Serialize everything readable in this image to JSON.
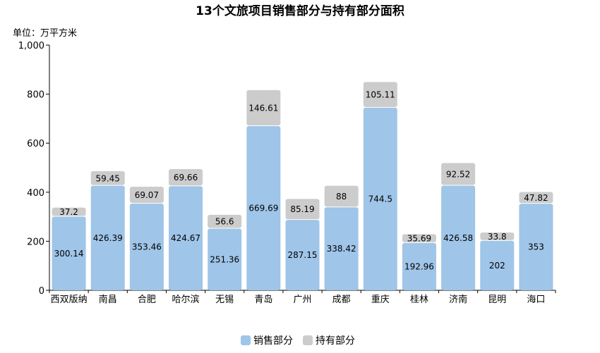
{
  "chart_data": {
    "type": "bar",
    "stacked": true,
    "title": "13个文旅项目销售部分与持有部分面积",
    "unit_label": "单位：万平方米",
    "categories": [
      "西双版纳",
      "南昌",
      "合肥",
      "哈尔滨",
      "无锡",
      "青岛",
      "广州",
      "成都",
      "重庆",
      "桂林",
      "济南",
      "昆明",
      "海口"
    ],
    "series": [
      {
        "name": "销售部分",
        "color": "#9fc5e8",
        "values": [
          300.14,
          426.39,
          353.46,
          424.67,
          251.36,
          669.69,
          287.15,
          338.42,
          744.5,
          192.96,
          426.58,
          202,
          353
        ]
      },
      {
        "name": "持有部分",
        "color": "#cccccc",
        "values": [
          37.2,
          59.45,
          69.07,
          69.66,
          56.6,
          146.61,
          85.19,
          88,
          105.11,
          35.69,
          92.52,
          33.8,
          47.82
        ]
      }
    ],
    "ylim": [
      0,
      1000
    ],
    "yticks": [
      0,
      200,
      400,
      600,
      800,
      1000
    ],
    "ytick_labels": [
      "0",
      "200",
      "400",
      "600",
      "800",
      "1,000"
    ],
    "grid": false,
    "legend_position": "bottom-center"
  }
}
